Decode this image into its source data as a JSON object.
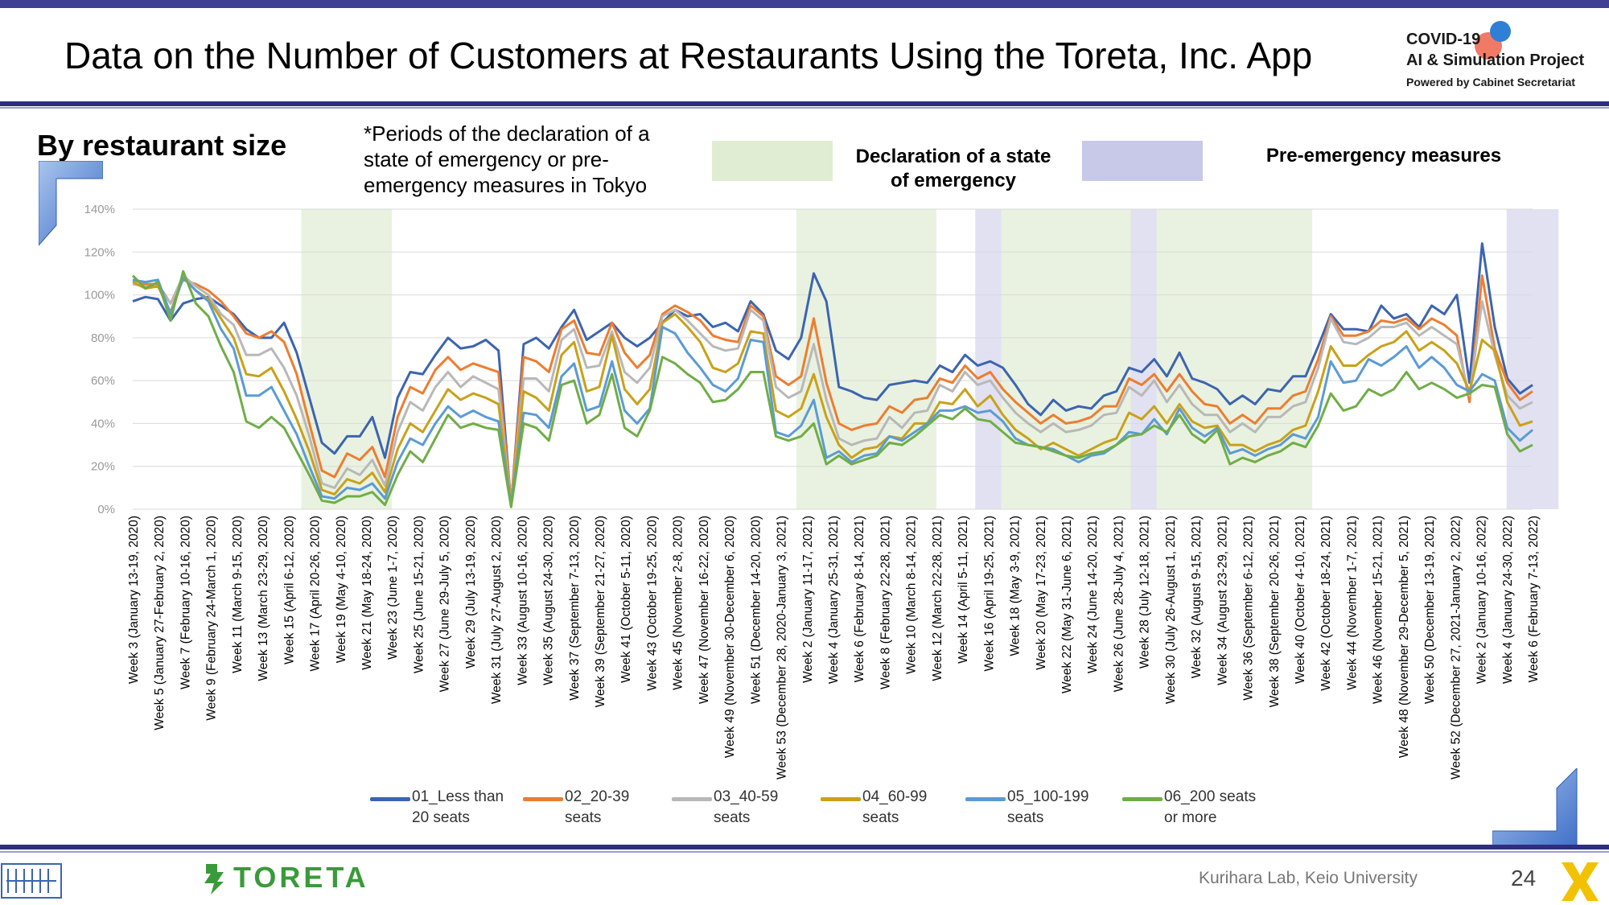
{
  "header": {
    "title": "Data on the Number of Customers at Restaurants Using the Toreta, Inc. App",
    "project_line1": "COVID-19",
    "project_line2": "AI & Simulation Project",
    "project_line3": "Powered by Cabinet Secretariat"
  },
  "subtitle": "By restaurant size",
  "note": "*Periods of the declaration of a state of emergency or pre-emergency measures in Tokyo",
  "period_legend": {
    "emergency_label": "Declaration of a state of emergency",
    "emergency_color": "#e0edd3",
    "pre_label": "Pre-emergency measures",
    "pre_color": "#c8c8e8"
  },
  "footer": {
    "brand": "TORETA",
    "credit": "Kurihara Lab, Keio University",
    "page": "24"
  },
  "chart_data": {
    "type": "line",
    "ylim": [
      0,
      1.4
    ],
    "yticks": [
      "0%",
      "20%",
      "40%",
      "60%",
      "80%",
      "100%",
      "120%",
      "140%"
    ],
    "x_tick_labels": [
      "Week 3 (January 13-19, 2020)",
      "Week 5 (January 27-February 2, 2020)",
      "Week 7 (February 10-16, 2020)",
      "Week 9 (February 24-March 1, 2020)",
      "Week 11 (March 9-15, 2020)",
      "Week 13 (March 23-29, 2020)",
      "Week 15 (April 6-12, 2020)",
      "Week 17 (April 20-26, 2020)",
      "Week 19 (May 4-10, 2020)",
      "Week 21 (May 18-24, 2020)",
      "Week 23 (June 1-7, 2020)",
      "Week 25 (June 15-21, 2020)",
      "Week 27 (June 29-July 5, 2020)",
      "Week 29 (July 13-19, 2020)",
      "Week 31 (July 27-August 2, 2020)",
      "Week 33 (August 10-16, 2020)",
      "Week 35 (August 24-30, 2020)",
      "Week 37 (September 7-13, 2020)",
      "Week 39 (September 21-27, 2020)",
      "Week 41 (October 5-11, 2020)",
      "Week 43 (October 19-25, 2020)",
      "Week 45 (November 2-8, 2020)",
      "Week 47 (November 16-22, 2020)",
      "Week 49 (November 30-December 6, 2020)",
      "Week 51 (December 14-20, 2020)",
      "Week 53 (December 28, 2020-January 3, 2021)",
      "Week 2 (January 11-17, 2021)",
      "Week 4 (January 25-31, 2021)",
      "Week 6 (February 8-14, 2021)",
      "Week 8 (February 22-28, 2021)",
      "Week 10 (March 8-14, 2021)",
      "Week 12 (March 22-28, 2021)",
      "Week 14 (April 5-11, 2021)",
      "Week 16 (April 19-25, 2021)",
      "Week 18 (May 3-9, 2021)",
      "Week 20 (May 17-23, 2021)",
      "Week 22 (May 31-June 6, 2021)",
      "Week 24 (June 14-20, 2021)",
      "Week 26 (June 28-July 4, 2021)",
      "Week 28 (July 12-18, 2021)",
      "Week 30 (July 26-August 1, 2021)",
      "Week 32 (August 9-15, 2021)",
      "Week 34 (August 23-29, 2021)",
      "Week 36 (September 6-12, 2021)",
      "Week 38 (September 20-26, 2021)",
      "Week 40 (October 4-10, 2021)",
      "Week 42 (October 18-24, 2021)",
      "Week 44 (November 1-7, 2021)",
      "Week 46 (November 15-21, 2021)",
      "Week 48 (November 29-December 5, 2021)",
      "Week 50 (December 13-19, 2021)",
      "Week 52 (December 27, 2021-January 2, 2022)",
      "Week 2 (January 10-16, 2022)",
      "Week 4 (January 24-30, 2022)",
      "Week 6 (February 7-13, 2022)"
    ],
    "emergency_periods": [
      [
        6.5,
        10
      ],
      [
        25.6,
        31
      ],
      [
        33.5,
        38.5
      ],
      [
        39.5,
        45.5
      ]
    ],
    "pre_emergency_periods": [
      [
        32.5,
        33.5
      ],
      [
        38.5,
        39.5
      ],
      [
        53,
        55
      ]
    ],
    "series": [
      {
        "name": "01_Less than 20 seats",
        "color": "#3c64b0",
        "values": [
          0.97,
          0.99,
          0.98,
          0.88,
          0.96,
          0.98,
          0.99,
          0.95,
          0.91,
          0.84,
          0.8,
          0.8,
          0.87,
          0.73,
          0.52,
          0.31,
          0.26,
          0.34,
          0.34,
          0.43,
          0.24,
          0.52,
          0.64,
          0.63,
          0.72,
          0.8,
          0.75,
          0.76,
          0.79,
          0.74,
          0.02,
          0.77,
          0.8,
          0.75,
          0.85,
          0.93,
          0.79,
          0.83,
          0.87,
          0.8,
          0.76,
          0.8,
          0.87,
          0.93,
          0.9,
          0.91,
          0.85,
          0.87,
          0.83,
          0.97,
          0.91,
          0.74,
          0.7,
          0.8,
          1.1,
          0.97,
          0.57,
          0.55,
          0.52,
          0.51,
          0.58,
          0.59,
          0.6,
          0.59,
          0.67,
          0.64,
          0.72,
          0.67,
          0.69,
          0.66,
          0.58,
          0.49,
          0.44,
          0.51,
          0.46,
          0.48,
          0.47,
          0.53,
          0.55,
          0.66,
          0.64,
          0.7,
          0.62,
          0.73,
          0.61,
          0.59,
          0.56,
          0.49,
          0.53,
          0.49,
          0.56,
          0.55,
          0.62,
          0.62,
          0.76,
          0.91,
          0.84,
          0.84,
          0.83,
          0.95,
          0.89,
          0.91,
          0.85,
          0.95,
          0.91,
          1.0,
          0.59,
          1.24,
          0.85,
          0.61,
          0.54,
          0.58
        ]
      },
      {
        "name": "02_20-39 seats",
        "color": "#ed7d31",
        "values": [
          1.07,
          1.05,
          1.05,
          0.96,
          1.07,
          1.05,
          1.02,
          0.97,
          0.9,
          0.82,
          0.8,
          0.83,
          0.78,
          0.63,
          0.4,
          0.18,
          0.15,
          0.26,
          0.23,
          0.29,
          0.15,
          0.43,
          0.57,
          0.54,
          0.65,
          0.71,
          0.65,
          0.68,
          0.66,
          0.64,
          0.03,
          0.71,
          0.69,
          0.64,
          0.84,
          0.88,
          0.73,
          0.72,
          0.87,
          0.73,
          0.66,
          0.72,
          0.91,
          0.95,
          0.92,
          0.88,
          0.81,
          0.79,
          0.78,
          0.95,
          0.9,
          0.62,
          0.58,
          0.62,
          0.89,
          0.59,
          0.4,
          0.37,
          0.39,
          0.4,
          0.48,
          0.45,
          0.51,
          0.52,
          0.61,
          0.59,
          0.67,
          0.61,
          0.64,
          0.56,
          0.5,
          0.45,
          0.4,
          0.44,
          0.4,
          0.41,
          0.43,
          0.48,
          0.48,
          0.61,
          0.58,
          0.63,
          0.55,
          0.63,
          0.55,
          0.49,
          0.48,
          0.4,
          0.44,
          0.4,
          0.47,
          0.47,
          0.53,
          0.55,
          0.7,
          0.9,
          0.81,
          0.81,
          0.83,
          0.88,
          0.87,
          0.89,
          0.84,
          0.89,
          0.86,
          0.81,
          0.5,
          1.09,
          0.75,
          0.59,
          0.51,
          0.55
        ]
      },
      {
        "name": "03_40-59 seats",
        "color": "#b8b8b8",
        "values": [
          1.05,
          1.04,
          1.04,
          0.96,
          1.09,
          1.04,
          1.0,
          0.91,
          0.86,
          0.72,
          0.72,
          0.75,
          0.66,
          0.53,
          0.34,
          0.12,
          0.1,
          0.19,
          0.16,
          0.23,
          0.11,
          0.36,
          0.5,
          0.46,
          0.57,
          0.64,
          0.57,
          0.62,
          0.59,
          0.56,
          0.02,
          0.61,
          0.61,
          0.55,
          0.79,
          0.84,
          0.66,
          0.67,
          0.83,
          0.64,
          0.59,
          0.66,
          0.9,
          0.93,
          0.88,
          0.82,
          0.76,
          0.74,
          0.75,
          0.93,
          0.88,
          0.57,
          0.52,
          0.55,
          0.77,
          0.51,
          0.33,
          0.3,
          0.32,
          0.33,
          0.43,
          0.38,
          0.45,
          0.46,
          0.58,
          0.55,
          0.64,
          0.58,
          0.6,
          0.52,
          0.45,
          0.4,
          0.36,
          0.4,
          0.36,
          0.37,
          0.39,
          0.44,
          0.45,
          0.57,
          0.53,
          0.6,
          0.5,
          0.58,
          0.49,
          0.44,
          0.44,
          0.36,
          0.4,
          0.36,
          0.43,
          0.43,
          0.48,
          0.5,
          0.66,
          0.89,
          0.78,
          0.77,
          0.8,
          0.85,
          0.85,
          0.87,
          0.81,
          0.85,
          0.81,
          0.77,
          0.53,
          0.97,
          0.72,
          0.53,
          0.47,
          0.5
        ]
      },
      {
        "name": "04_60-99 seats",
        "color": "#c9a11a",
        "values": [
          1.06,
          1.03,
          1.04,
          0.92,
          1.08,
          1.02,
          0.98,
          0.89,
          0.8,
          0.63,
          0.62,
          0.66,
          0.55,
          0.42,
          0.27,
          0.09,
          0.07,
          0.14,
          0.12,
          0.17,
          0.08,
          0.28,
          0.4,
          0.36,
          0.46,
          0.56,
          0.51,
          0.54,
          0.52,
          0.49,
          0.02,
          0.55,
          0.52,
          0.46,
          0.72,
          0.78,
          0.55,
          0.57,
          0.81,
          0.56,
          0.49,
          0.56,
          0.87,
          0.91,
          0.85,
          0.78,
          0.66,
          0.64,
          0.68,
          0.83,
          0.82,
          0.46,
          0.43,
          0.47,
          0.63,
          0.43,
          0.3,
          0.24,
          0.28,
          0.29,
          0.34,
          0.33,
          0.4,
          0.4,
          0.5,
          0.49,
          0.56,
          0.48,
          0.53,
          0.44,
          0.37,
          0.33,
          0.28,
          0.31,
          0.28,
          0.25,
          0.28,
          0.31,
          0.33,
          0.45,
          0.42,
          0.48,
          0.4,
          0.49,
          0.41,
          0.38,
          0.39,
          0.3,
          0.3,
          0.27,
          0.3,
          0.32,
          0.37,
          0.39,
          0.55,
          0.76,
          0.67,
          0.67,
          0.72,
          0.76,
          0.78,
          0.83,
          0.74,
          0.78,
          0.74,
          0.68,
          0.55,
          0.79,
          0.74,
          0.5,
          0.39,
          0.41
        ]
      },
      {
        "name": "05_100-199 seats",
        "color": "#5b9bd5",
        "values": [
          1.07,
          1.06,
          1.07,
          0.91,
          1.08,
          1.02,
          0.97,
          0.84,
          0.75,
          0.53,
          0.53,
          0.57,
          0.46,
          0.35,
          0.2,
          0.06,
          0.05,
          0.1,
          0.09,
          0.12,
          0.05,
          0.22,
          0.33,
          0.3,
          0.4,
          0.48,
          0.43,
          0.46,
          0.43,
          0.41,
          0.02,
          0.45,
          0.44,
          0.38,
          0.62,
          0.68,
          0.46,
          0.48,
          0.69,
          0.46,
          0.4,
          0.47,
          0.85,
          0.82,
          0.73,
          0.66,
          0.58,
          0.55,
          0.61,
          0.79,
          0.78,
          0.36,
          0.34,
          0.39,
          0.51,
          0.24,
          0.27,
          0.22,
          0.25,
          0.26,
          0.34,
          0.32,
          0.36,
          0.4,
          0.46,
          0.46,
          0.48,
          0.45,
          0.46,
          0.41,
          0.33,
          0.3,
          0.29,
          0.28,
          0.25,
          0.22,
          0.25,
          0.26,
          0.3,
          0.36,
          0.35,
          0.42,
          0.35,
          0.47,
          0.38,
          0.34,
          0.38,
          0.26,
          0.28,
          0.25,
          0.28,
          0.3,
          0.35,
          0.33,
          0.43,
          0.69,
          0.59,
          0.6,
          0.7,
          0.67,
          0.71,
          0.76,
          0.66,
          0.71,
          0.66,
          0.58,
          0.55,
          0.63,
          0.6,
          0.38,
          0.32,
          0.37
        ]
      },
      {
        "name": "06_200 seats or more",
        "color": "#70ad47",
        "values": [
          1.09,
          1.03,
          1.06,
          0.88,
          1.11,
          0.96,
          0.9,
          0.76,
          0.64,
          0.41,
          0.38,
          0.43,
          0.38,
          0.27,
          0.16,
          0.04,
          0.03,
          0.06,
          0.06,
          0.08,
          0.02,
          0.16,
          0.27,
          0.22,
          0.33,
          0.44,
          0.38,
          0.4,
          0.38,
          0.37,
          0.01,
          0.4,
          0.38,
          0.32,
          0.58,
          0.6,
          0.4,
          0.44,
          0.63,
          0.38,
          0.34,
          0.46,
          0.71,
          0.68,
          0.63,
          0.59,
          0.5,
          0.51,
          0.56,
          0.64,
          0.64,
          0.34,
          0.32,
          0.34,
          0.4,
          0.21,
          0.25,
          0.21,
          0.23,
          0.25,
          0.31,
          0.3,
          0.34,
          0.39,
          0.44,
          0.42,
          0.47,
          0.42,
          0.41,
          0.36,
          0.31,
          0.3,
          0.29,
          0.27,
          0.25,
          0.24,
          0.26,
          0.27,
          0.3,
          0.34,
          0.35,
          0.39,
          0.36,
          0.44,
          0.35,
          0.31,
          0.37,
          0.21,
          0.24,
          0.22,
          0.25,
          0.27,
          0.31,
          0.29,
          0.39,
          0.54,
          0.46,
          0.48,
          0.56,
          0.53,
          0.56,
          0.64,
          0.56,
          0.59,
          0.56,
          0.52,
          0.54,
          0.58,
          0.57,
          0.35,
          0.27,
          0.3
        ]
      }
    ]
  }
}
